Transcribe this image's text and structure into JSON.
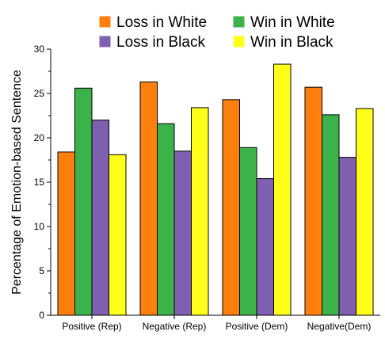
{
  "chart_data": {
    "type": "bar",
    "title": "",
    "xlabel": "",
    "ylabel": "Percentage of Emotion-based Sentence",
    "ylim": [
      0,
      30
    ],
    "yticks": [
      0,
      5,
      10,
      15,
      20,
      25,
      30
    ],
    "grid": false,
    "legend_position": "top",
    "categories": [
      "Positive (Rep)",
      "Negative (Rep)",
      "Positive (Dem)",
      "Negative(Dem)"
    ],
    "series": [
      {
        "name": "Loss in White",
        "color": "#FF7F0E",
        "values": [
          18.4,
          26.3,
          24.3,
          25.7
        ]
      },
      {
        "name": "Win in White",
        "color": "#3CB34A",
        "values": [
          25.6,
          21.6,
          18.9,
          22.6
        ]
      },
      {
        "name": "Loss in Black",
        "color": "#7F5FB0",
        "values": [
          22.0,
          18.5,
          15.4,
          17.8
        ]
      },
      {
        "name": "Win in Black",
        "color": "#FFFF1A",
        "values": [
          18.1,
          23.4,
          28.3,
          23.3
        ]
      }
    ]
  }
}
